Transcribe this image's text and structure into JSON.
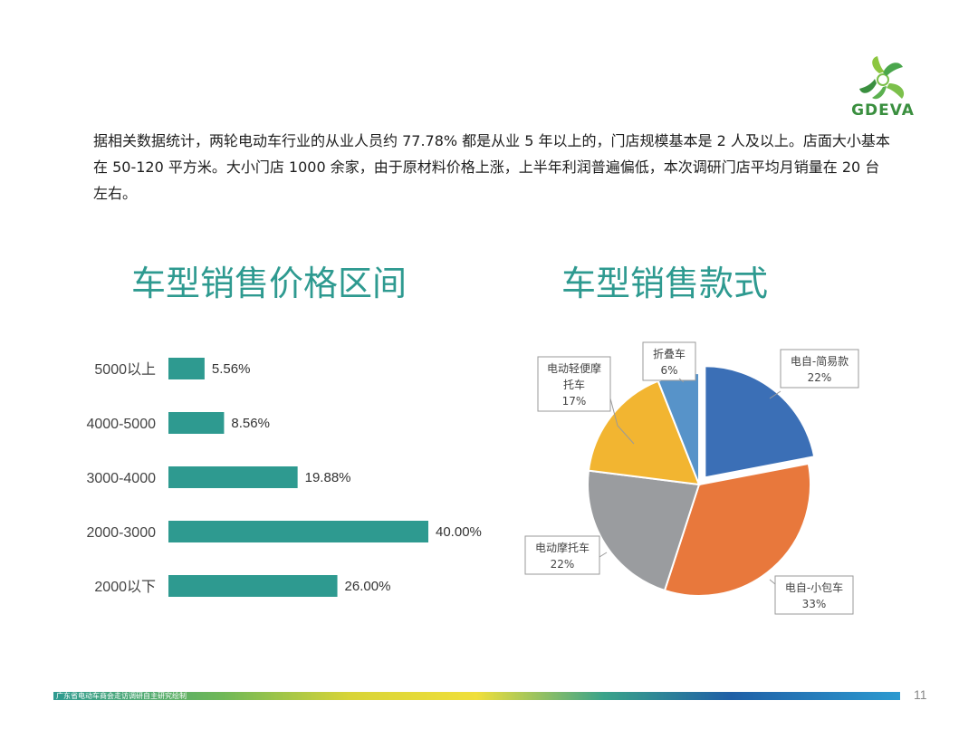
{
  "logo": {
    "text": "GDEVA",
    "icon": "leaf-pinwheel-logo"
  },
  "intro": "据相关数据统计，两轮电动车行业的从业人员约 77.78% 都是从业 5 年以上的，门店规模基本是 2 人及以上。店面大小基本在 50-120 平方米。大小门店 1000 余家，由于原材料价格上涨，上半年利润普遍偏低，本次调研门店平均月销量在 20 台左右。",
  "titles": {
    "bar": "车型销售价格区间",
    "pie": "车型销售款式"
  },
  "chart_data": [
    {
      "type": "bar",
      "orientation": "horizontal",
      "title": "车型销售价格区间",
      "categories": [
        "5000以上",
        "4000-5000",
        "3000-4000",
        "2000-3000",
        "2000以下"
      ],
      "values": [
        5.56,
        8.56,
        19.88,
        40.0,
        26.0
      ],
      "value_labels": [
        "5.56%",
        "8.56%",
        "19.88%",
        "40.00%",
        "26.00%"
      ],
      "color": "#2e9a90",
      "xlim": [
        0,
        40
      ]
    },
    {
      "type": "pie",
      "title": "车型销售款式",
      "slices": [
        {
          "name": "电自-简易款",
          "value": 22,
          "label": "22%",
          "color": "#3b6fb6",
          "exploded": true
        },
        {
          "name": "电自-小包车",
          "value": 33,
          "label": "33%",
          "color": "#e8783c",
          "exploded": false
        },
        {
          "name": "电动摩托车",
          "value": 22,
          "label": "22%",
          "color": "#9a9c9f",
          "exploded": false
        },
        {
          "name": "电动轻便摩托车",
          "value": 17,
          "label": "17%",
          "color": "#f2b531",
          "exploded": false
        },
        {
          "name": "折叠车",
          "value": 6,
          "label": "6%",
          "color": "#5793c9",
          "exploded": false
        }
      ]
    }
  ],
  "footer": {
    "text": "广东省电动车商会走访调研自主研究绘制",
    "page": "11"
  }
}
